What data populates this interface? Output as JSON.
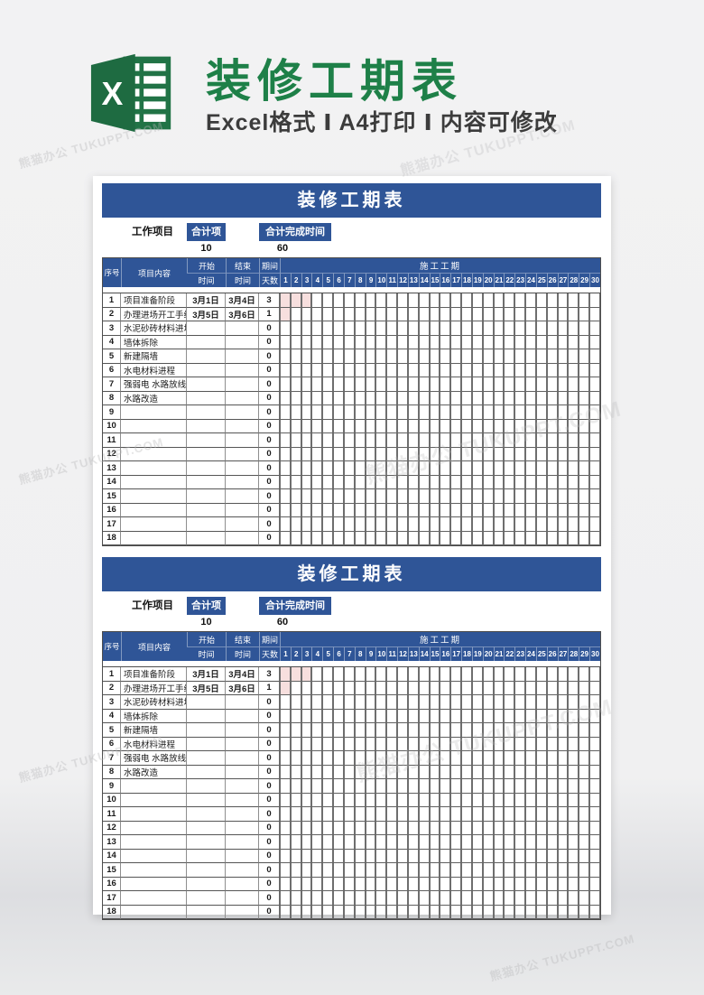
{
  "page": {
    "title": "装修工期表",
    "subtitle": "Excel格式 Ⅰ A4打印 Ⅰ 内容可修改",
    "watermark": "熊猫办公 TUKUPPT.COM",
    "colors": {
      "accent_blue": "#2f5597",
      "excel_green": "#217346",
      "title_green": "#1e8048",
      "gantt_fill_pink": "#f7dfde"
    },
    "logo_icon": "excel-logo"
  },
  "table": {
    "banner_title": "装修工期表",
    "info": {
      "work_project_label": "工作项目",
      "total_projects_label": "合计项目",
      "total_projects_value": "10",
      "total_time_label": "合计完成时间",
      "total_time_value": "60"
    },
    "header": {
      "col_no": "序号",
      "col_content": "项目内容",
      "col_start_line1": "开始",
      "col_start_line2": "时间",
      "col_end_line1": "结束",
      "col_end_line2": "时间",
      "col_days_line1": "期间",
      "col_days_line2": "天数",
      "col_gantt": "施工工期",
      "day_numbers": [
        "1",
        "2",
        "3",
        "4",
        "5",
        "6",
        "7",
        "8",
        "9",
        "10",
        "11",
        "12",
        "13",
        "14",
        "15",
        "16",
        "17",
        "18",
        "19",
        "20",
        "21",
        "22",
        "23",
        "24",
        "25",
        "26",
        "27",
        "28",
        "29",
        "30"
      ]
    },
    "rows": [
      {
        "no": "1",
        "content": "项目准备阶段",
        "start": "3月1日",
        "end": "3月4日",
        "days": "3",
        "filled": [
          1,
          2,
          3
        ]
      },
      {
        "no": "2",
        "content": "办理进场开工手续",
        "start": "3月5日",
        "end": "3月6日",
        "days": "1",
        "filled": [
          1
        ]
      },
      {
        "no": "3",
        "content": "水泥砂砖材料进场",
        "start": "",
        "end": "",
        "days": "0",
        "filled": []
      },
      {
        "no": "4",
        "content": "墙体拆除",
        "start": "",
        "end": "",
        "days": "0",
        "filled": []
      },
      {
        "no": "5",
        "content": "新建隔墙",
        "start": "",
        "end": "",
        "days": "0",
        "filled": []
      },
      {
        "no": "6",
        "content": "水电材料进程",
        "start": "",
        "end": "",
        "days": "0",
        "filled": []
      },
      {
        "no": "7",
        "content": "强弱电 水路放线",
        "start": "",
        "end": "",
        "days": "0",
        "filled": []
      },
      {
        "no": "8",
        "content": "水路改造",
        "start": "",
        "end": "",
        "days": "0",
        "filled": []
      },
      {
        "no": "9",
        "content": "",
        "start": "",
        "end": "",
        "days": "0",
        "filled": []
      },
      {
        "no": "10",
        "content": "",
        "start": "",
        "end": "",
        "days": "0",
        "filled": []
      },
      {
        "no": "11",
        "content": "",
        "start": "",
        "end": "",
        "days": "0",
        "filled": []
      },
      {
        "no": "12",
        "content": "",
        "start": "",
        "end": "",
        "days": "0",
        "filled": []
      },
      {
        "no": "13",
        "content": "",
        "start": "",
        "end": "",
        "days": "0",
        "filled": []
      },
      {
        "no": "14",
        "content": "",
        "start": "",
        "end": "",
        "days": "0",
        "filled": []
      },
      {
        "no": "15",
        "content": "",
        "start": "",
        "end": "",
        "days": "0",
        "filled": []
      },
      {
        "no": "16",
        "content": "",
        "start": "",
        "end": "",
        "days": "0",
        "filled": []
      },
      {
        "no": "17",
        "content": "",
        "start": "",
        "end": "",
        "days": "0",
        "filled": []
      },
      {
        "no": "18",
        "content": "",
        "start": "",
        "end": "",
        "days": "0",
        "filled": []
      }
    ]
  }
}
